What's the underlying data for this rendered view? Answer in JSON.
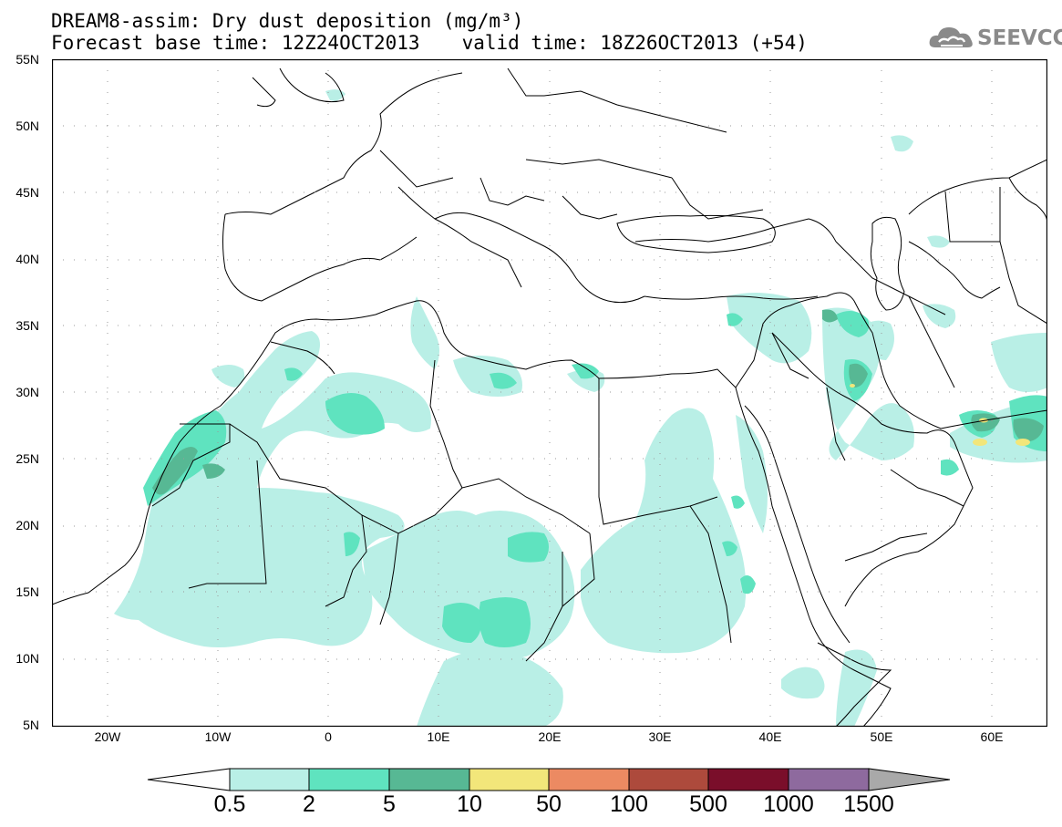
{
  "header": {
    "title_line1": "DREAM8-assim: Dry dust deposition (mg/m³)",
    "title_line2_left": "Forecast base time: 12Z24OCT2013",
    "title_line2_right": "valid time: 18Z26OCT2013 (+54)",
    "logo_text": "SEEVCCC",
    "logo_icon": "cloud-icon"
  },
  "map": {
    "lon_range": [
      -25,
      65
    ],
    "lat_range": [
      5,
      55
    ],
    "lat_labels": [
      "55N",
      "50N",
      "45N",
      "40N",
      "35N",
      "30N",
      "25N",
      "20N",
      "15N",
      "10N",
      "5N"
    ],
    "lon_labels": [
      "20W",
      "10W",
      "0",
      "10E",
      "20E",
      "30E",
      "40E",
      "50E",
      "60E"
    ],
    "grid_style": "dotted"
  },
  "colorbar": {
    "labels": [
      "0.5",
      "2",
      "5",
      "10",
      "50",
      "100",
      "500",
      "1000",
      "1500"
    ],
    "colors": [
      "#ffffff",
      "#b9efe6",
      "#5fe3bf",
      "#57b894",
      "#f2e67a",
      "#ec8a62",
      "#ad4a3c",
      "#7a0e2a",
      "#8e6a9e",
      "#a9a9a9"
    ]
  },
  "colors": {
    "level1": "#b9efe6",
    "level2": "#5fe3bf",
    "level3": "#57b894",
    "level4": "#f2e67a"
  }
}
